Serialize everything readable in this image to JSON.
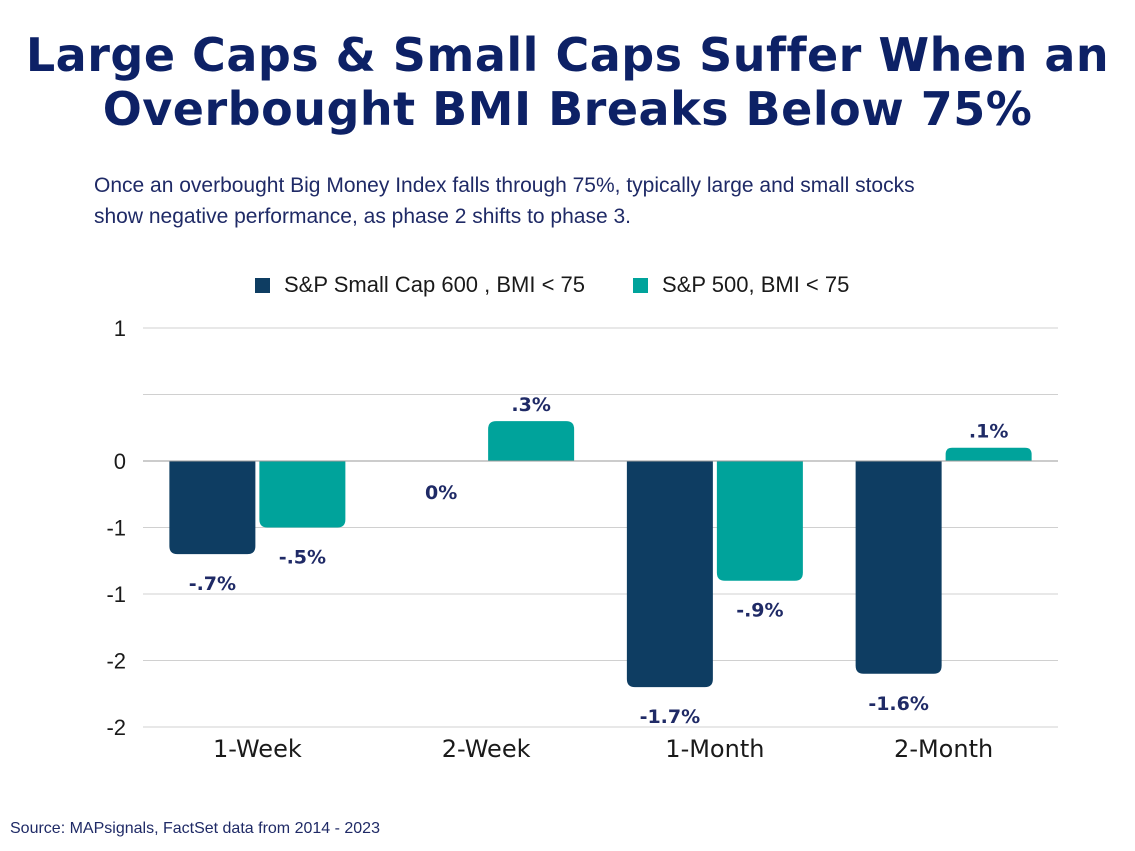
{
  "title_lines": [
    "Large Caps & Small Caps Suffer When an",
    "Overbought BMI Breaks Below 75%"
  ],
  "subtitle_lines": [
    "Once an overbought Big Money Index falls through 75%, typically large and small stocks",
    "show negative performance, as phase 2 shifts to phase 3."
  ],
  "source": "Source: MAPsignals, FactSet data from 2014 - 2023",
  "colors": {
    "series1": "#0e3d62",
    "series2": "#00a39b",
    "title": "#0d2166",
    "grid": "#d0d0d0"
  },
  "chart_data": {
    "type": "bar",
    "categories": [
      "1-Week",
      "2-Week",
      "1-Month",
      "2-Month"
    ],
    "series": [
      {
        "name": "S&P Small Cap 600 , BMI < 75",
        "values": [
          -0.7,
          0,
          -1.7,
          -1.6
        ],
        "labels": [
          "-.7%",
          "0%",
          "-1.7%",
          "-1.6%"
        ]
      },
      {
        "name": "S&P 500, BMI < 75",
        "values": [
          -0.5,
          0.3,
          -0.9,
          0.1
        ],
        "labels": [
          "-.5%",
          ".3%",
          "-.9%",
          ".1%"
        ]
      }
    ],
    "ylim": [
      -2,
      1
    ],
    "ytick_values": [
      1,
      0.5,
      0,
      -0.5,
      -1,
      -1.5,
      -2
    ],
    "ytick_labels": [
      "1",
      "0",
      "-1",
      "-1",
      "-2",
      "-2"
    ],
    "ytick_label_values": [
      1,
      0,
      -0.5,
      -1,
      -1.5,
      -2
    ],
    "grid": true,
    "legend": "top"
  }
}
